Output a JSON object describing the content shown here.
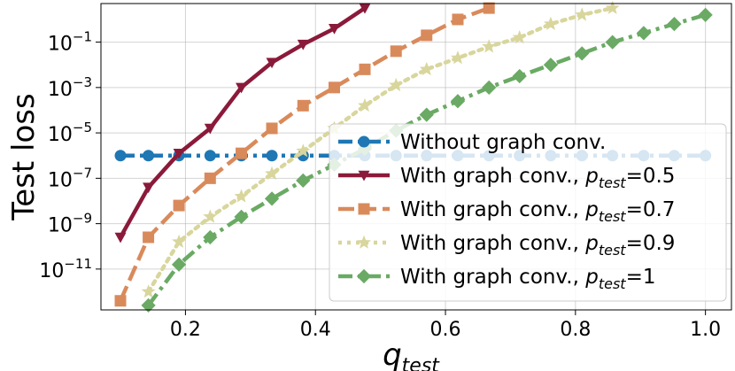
{
  "chart_data": {
    "type": "line",
    "xlabel": "q",
    "xlabel_sub": "test",
    "ylabel": "Test loss",
    "y_scale": "log",
    "xlim": [
      0.07,
      1.04
    ],
    "ylim_exp": [
      -12.8,
      0.7
    ],
    "x_ticks": [
      {
        "value": 0.2,
        "label": "0.2"
      },
      {
        "value": 0.4,
        "label": "0.4"
      },
      {
        "value": 0.6,
        "label": "0.6"
      },
      {
        "value": 0.8,
        "label": "0.8"
      },
      {
        "value": 1.0,
        "label": "1.0"
      }
    ],
    "y_ticks": [
      {
        "exp": -1,
        "base": "10",
        "sup": "−1"
      },
      {
        "exp": -3,
        "base": "10",
        "sup": "−3"
      },
      {
        "exp": -5,
        "base": "10",
        "sup": "−5"
      },
      {
        "exp": -7,
        "base": "10",
        "sup": "−7"
      },
      {
        "exp": -9,
        "base": "10",
        "sup": "−9"
      },
      {
        "exp": -11,
        "base": "10",
        "sup": "−11"
      }
    ],
    "grid": true,
    "legend_position": "lower-right",
    "series": [
      {
        "name": "Without graph conv.",
        "name_parts": [
          "Without graph conv.",
          "",
          ""
        ],
        "color": "#1f77b4",
        "line_style": "dashdot",
        "marker": "circle",
        "x": [
          0.1,
          0.143,
          0.19,
          0.238,
          0.286,
          0.333,
          0.381,
          0.429,
          0.476,
          0.524,
          0.571,
          0.619,
          0.667,
          0.714,
          0.762,
          0.81,
          0.857,
          0.905,
          0.952,
          1.0
        ],
        "y_exp": [
          -6.0,
          -6.0,
          -6.0,
          -6.0,
          -6.0,
          -6.0,
          -6.0,
          -6.0,
          -6.0,
          -6.0,
          -6.0,
          -6.0,
          -6.0,
          -6.0,
          -6.0,
          -6.0,
          -6.0,
          -6.0,
          -6.0,
          -6.0
        ]
      },
      {
        "name": "With graph conv., p_test=0.5",
        "name_parts": [
          "With graph conv., ",
          "p",
          "test",
          "=0.5"
        ],
        "color": "#8b1a3a",
        "line_style": "solid",
        "marker": "triangle-down",
        "x": [
          0.1,
          0.143,
          0.19,
          0.238,
          0.286,
          0.333,
          0.381,
          0.429,
          0.476
        ],
        "y_exp": [
          -9.6,
          -7.4,
          -5.9,
          -4.8,
          -3.0,
          -1.9,
          -1.1,
          -0.4,
          0.5
        ]
      },
      {
        "name": "With graph conv., p_test=0.7",
        "name_parts": [
          "With graph conv., ",
          "p",
          "test",
          "=0.7"
        ],
        "color": "#d98a5b",
        "line_style": "dashed",
        "marker": "square",
        "x": [
          0.1,
          0.143,
          0.19,
          0.238,
          0.286,
          0.333,
          0.381,
          0.429,
          0.476,
          0.524,
          0.571,
          0.619,
          0.667
        ],
        "y_exp": [
          -12.4,
          -9.6,
          -8.2,
          -7.0,
          -5.9,
          -4.8,
          -3.8,
          -3.0,
          -2.2,
          -1.4,
          -0.7,
          0.0,
          0.5
        ]
      },
      {
        "name": "With graph conv., p_test=0.9",
        "name_parts": [
          "With graph conv., ",
          "p",
          "test",
          "=0.9"
        ],
        "color": "#d8d69c",
        "line_style": "dotted",
        "marker": "star",
        "x": [
          0.143,
          0.19,
          0.238,
          0.286,
          0.333,
          0.381,
          0.429,
          0.476,
          0.524,
          0.571,
          0.619,
          0.667,
          0.714,
          0.762,
          0.81,
          0.857
        ],
        "y_exp": [
          -12.0,
          -9.8,
          -8.7,
          -7.8,
          -6.8,
          -5.8,
          -4.8,
          -3.8,
          -2.9,
          -2.2,
          -1.7,
          -1.2,
          -0.8,
          -0.2,
          0.2,
          0.5
        ]
      },
      {
        "name": "With graph conv., p_test=1",
        "name_parts": [
          "With graph conv., ",
          "p",
          "test",
          "=1"
        ],
        "color": "#6aaa64",
        "line_style": "dashdot",
        "marker": "diamond",
        "x": [
          0.143,
          0.19,
          0.238,
          0.286,
          0.333,
          0.381,
          0.429,
          0.476,
          0.524,
          0.571,
          0.619,
          0.667,
          0.714,
          0.762,
          0.81,
          0.857,
          0.905,
          0.952,
          1.0
        ],
        "y_exp": [
          -12.6,
          -10.8,
          -9.6,
          -8.7,
          -7.9,
          -7.1,
          -6.4,
          -5.7,
          -4.9,
          -4.2,
          -3.6,
          -3.0,
          -2.5,
          -2.0,
          -1.5,
          -1.0,
          -0.6,
          -0.2,
          0.2
        ]
      }
    ]
  }
}
